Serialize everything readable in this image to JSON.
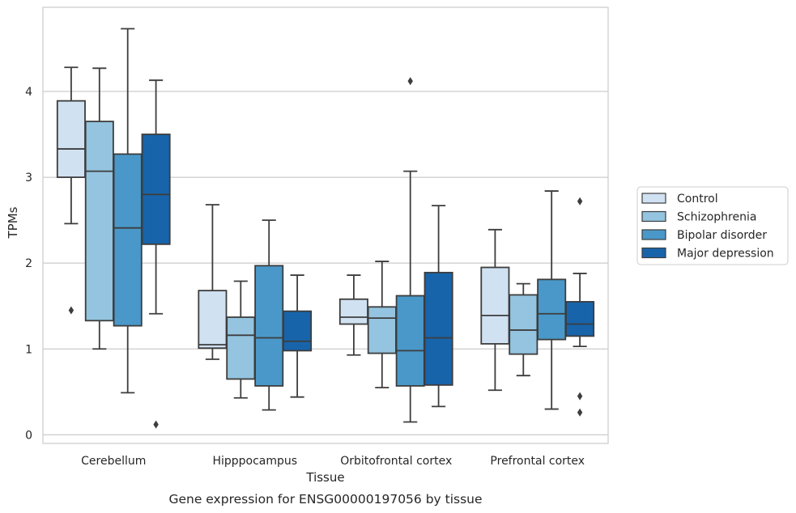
{
  "caption": "Gene expression for ENSG00000197056 by tissue",
  "chart_data": {
    "type": "box",
    "xlabel": "Tissue",
    "ylabel": "TPMs",
    "ylim": [
      -0.1,
      4.98
    ],
    "yticks": [
      0,
      1,
      2,
      3,
      4
    ],
    "grid": "horizontal",
    "legend_position": "right",
    "categories": [
      "Cerebellum",
      "Hipppocampus",
      "Orbitofrontal cortex",
      "Prefrontal cortex"
    ],
    "series": [
      {
        "name": "Control",
        "color": "#d0e1f2",
        "boxes": [
          {
            "whislo": 2.46,
            "q1": 3.0,
            "med": 3.33,
            "q3": 3.89,
            "whishi": 4.28,
            "fliers": [
              1.45
            ]
          },
          {
            "whislo": 0.88,
            "q1": 1.01,
            "med": 1.05,
            "q3": 1.68,
            "whishi": 2.68,
            "fliers": []
          },
          {
            "whislo": 0.93,
            "q1": 1.29,
            "med": 1.37,
            "q3": 1.58,
            "whishi": 1.86,
            "fliers": []
          },
          {
            "whislo": 0.52,
            "q1": 1.06,
            "med": 1.39,
            "q3": 1.95,
            "whishi": 2.39,
            "fliers": []
          }
        ]
      },
      {
        "name": "Schizophrenia",
        "color": "#94c4df",
        "boxes": [
          {
            "whislo": 1.0,
            "q1": 1.33,
            "med": 3.07,
            "q3": 3.65,
            "whishi": 4.27,
            "fliers": []
          },
          {
            "whislo": 0.43,
            "q1": 0.65,
            "med": 1.16,
            "q3": 1.37,
            "whishi": 1.79,
            "fliers": []
          },
          {
            "whislo": 0.55,
            "q1": 0.95,
            "med": 1.36,
            "q3": 1.49,
            "whishi": 2.02,
            "fliers": []
          },
          {
            "whislo": 0.69,
            "q1": 0.94,
            "med": 1.22,
            "q3": 1.63,
            "whishi": 1.76,
            "fliers": []
          }
        ]
      },
      {
        "name": "Bipolar disorder",
        "color": "#4a98c9",
        "boxes": [
          {
            "whislo": 0.49,
            "q1": 1.27,
            "med": 2.41,
            "q3": 3.27,
            "whishi": 4.73,
            "fliers": []
          },
          {
            "whislo": 0.29,
            "q1": 0.57,
            "med": 1.13,
            "q3": 1.97,
            "whishi": 2.5,
            "fliers": []
          },
          {
            "whislo": 0.15,
            "q1": 0.57,
            "med": 0.98,
            "q3": 1.62,
            "whishi": 3.07,
            "fliers": [
              4.12
            ]
          },
          {
            "whislo": 0.3,
            "q1": 1.11,
            "med": 1.41,
            "q3": 1.81,
            "whishi": 2.84,
            "fliers": []
          }
        ]
      },
      {
        "name": "Major depression",
        "color": "#1764ab",
        "boxes": [
          {
            "whislo": 1.41,
            "q1": 2.22,
            "med": 2.8,
            "q3": 3.5,
            "whishi": 4.13,
            "fliers": [
              0.12
            ]
          },
          {
            "whislo": 0.44,
            "q1": 0.98,
            "med": 1.09,
            "q3": 1.44,
            "whishi": 1.86,
            "fliers": []
          },
          {
            "whislo": 0.33,
            "q1": 0.58,
            "med": 1.13,
            "q3": 1.89,
            "whishi": 2.67,
            "fliers": []
          },
          {
            "whislo": 1.03,
            "q1": 1.15,
            "med": 1.29,
            "q3": 1.55,
            "whishi": 1.88,
            "fliers": [
              0.26,
              0.45,
              2.72
            ]
          }
        ]
      }
    ]
  }
}
